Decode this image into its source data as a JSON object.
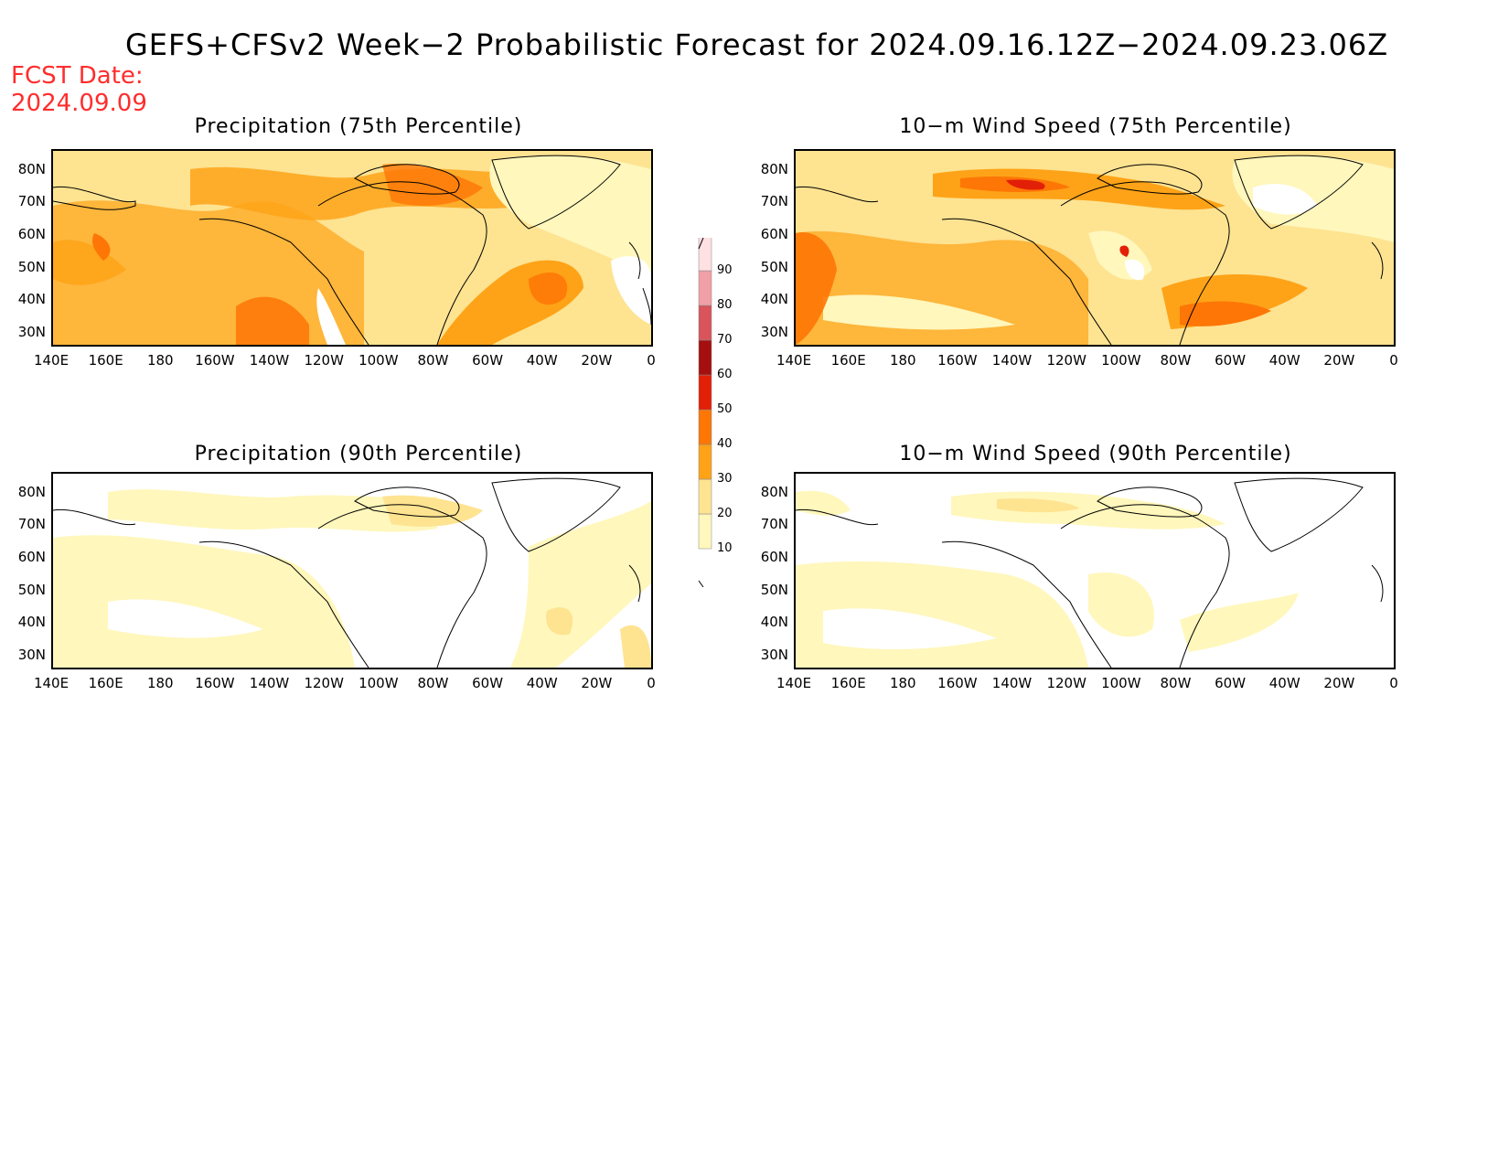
{
  "title": "GEFS+CFSv2 Week−2 Probabilistic Forecast for 2024.09.16.12Z−2024.09.23.06Z",
  "fcst_label": "FCST Date:",
  "fcst_date": "2024.09.09",
  "lon_ticks": [
    "140E",
    "160E",
    "180",
    "160W",
    "140W",
    "120W",
    "100W",
    "80W",
    "60W",
    "40W",
    "20W",
    "0"
  ],
  "lat_ticks": [
    "80N",
    "70N",
    "60N",
    "50N",
    "40N",
    "30N"
  ],
  "panels": [
    {
      "title": "Precipitation (75th Percentile)"
    },
    {
      "title": "10−m Wind Speed (75th Percentile)"
    },
    {
      "title": "Precipitation (90th Percentile)"
    },
    {
      "title": "10−m Wind Speed (90th Percentile)"
    }
  ],
  "colorbar": {
    "levels": [
      "10",
      "20",
      "30",
      "40",
      "50",
      "60",
      "70",
      "80",
      "90"
    ],
    "colors": [
      "#fff7bc",
      "#fee391",
      "#fea317",
      "#fe7606",
      "#e21f07",
      "#a50f0f",
      "#d9545b",
      "#f0a0a6",
      "#ffe0e3"
    ]
  }
}
